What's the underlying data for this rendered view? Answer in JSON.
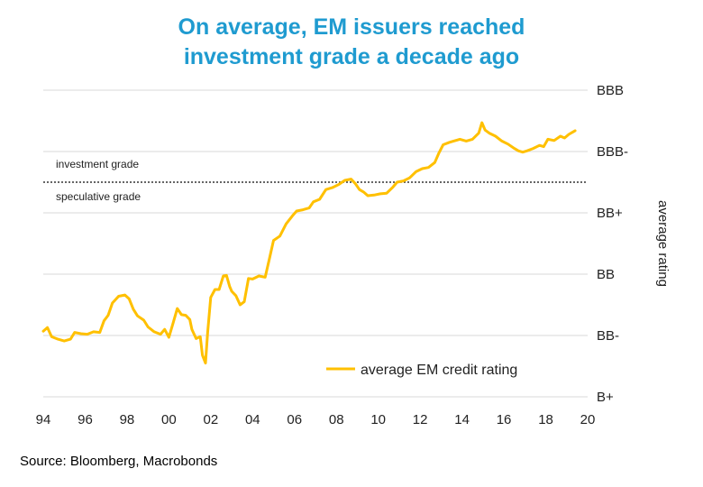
{
  "chart_data": {
    "type": "line",
    "title": [
      "On average, EM issuers reached",
      "investment grade a decade ago"
    ],
    "source": "Source: Bloomberg, Macrobonds",
    "ylabel": "average rating",
    "y_ticks": [
      "B+",
      "BB-",
      "BB",
      "BB+",
      "BBB-",
      "BBB"
    ],
    "y_range": [
      0,
      5
    ],
    "x_ticks": [
      "94",
      "96",
      "98",
      "00",
      "02",
      "04",
      "06",
      "08",
      "10",
      "12",
      "14",
      "16",
      "18",
      "20"
    ],
    "x_range": [
      1994,
      2020
    ],
    "threshold": {
      "value": 3.5,
      "upper_label": "investment grade",
      "lower_label": "speculative grade"
    },
    "legend": "average EM credit rating",
    "colors": {
      "series": "#ffc000",
      "title": "#1f9bd0",
      "grid": "#d9d9d9"
    },
    "series": [
      {
        "name": "average EM credit rating",
        "points": [
          [
            1994.0,
            1.07
          ],
          [
            1994.2,
            1.13
          ],
          [
            1994.4,
            0.98
          ],
          [
            1994.7,
            0.94
          ],
          [
            1995.0,
            0.91
          ],
          [
            1995.3,
            0.94
          ],
          [
            1995.5,
            1.05
          ],
          [
            1995.8,
            1.03
          ],
          [
            1996.1,
            1.02
          ],
          [
            1996.4,
            1.06
          ],
          [
            1996.7,
            1.05
          ],
          [
            1996.9,
            1.24
          ],
          [
            1997.1,
            1.33
          ],
          [
            1997.3,
            1.53
          ],
          [
            1997.6,
            1.64
          ],
          [
            1997.9,
            1.66
          ],
          [
            1998.1,
            1.6
          ],
          [
            1998.3,
            1.43
          ],
          [
            1998.5,
            1.32
          ],
          [
            1998.8,
            1.25
          ],
          [
            1999.0,
            1.14
          ],
          [
            1999.3,
            1.06
          ],
          [
            1999.6,
            1.02
          ],
          [
            1999.8,
            1.1
          ],
          [
            2000.0,
            0.97
          ],
          [
            2000.2,
            1.2
          ],
          [
            2000.4,
            1.44
          ],
          [
            2000.6,
            1.34
          ],
          [
            2000.8,
            1.33
          ],
          [
            2001.0,
            1.26
          ],
          [
            2001.1,
            1.1
          ],
          [
            2001.3,
            0.95
          ],
          [
            2001.5,
            0.98
          ],
          [
            2001.6,
            0.68
          ],
          [
            2001.75,
            0.55
          ],
          [
            2001.85,
            1.05
          ],
          [
            2002.0,
            1.62
          ],
          [
            2002.2,
            1.75
          ],
          [
            2002.4,
            1.75
          ],
          [
            2002.6,
            1.97
          ],
          [
            2002.75,
            1.98
          ],
          [
            2002.9,
            1.8
          ],
          [
            2003.0,
            1.72
          ],
          [
            2003.2,
            1.65
          ],
          [
            2003.4,
            1.5
          ],
          [
            2003.6,
            1.55
          ],
          [
            2003.8,
            1.93
          ],
          [
            2004.0,
            1.92
          ],
          [
            2004.3,
            1.97
          ],
          [
            2004.6,
            1.95
          ],
          [
            2004.8,
            2.25
          ],
          [
            2005.0,
            2.55
          ],
          [
            2005.3,
            2.62
          ],
          [
            2005.6,
            2.82
          ],
          [
            2005.9,
            2.95
          ],
          [
            2006.1,
            3.03
          ],
          [
            2006.4,
            3.05
          ],
          [
            2006.7,
            3.08
          ],
          [
            2006.9,
            3.18
          ],
          [
            2007.2,
            3.22
          ],
          [
            2007.5,
            3.38
          ],
          [
            2007.8,
            3.41
          ],
          [
            2008.1,
            3.46
          ],
          [
            2008.4,
            3.53
          ],
          [
            2008.7,
            3.55
          ],
          [
            2008.9,
            3.48
          ],
          [
            2009.1,
            3.38
          ],
          [
            2009.3,
            3.34
          ],
          [
            2009.5,
            3.28
          ],
          [
            2009.8,
            3.29
          ],
          [
            2010.1,
            3.31
          ],
          [
            2010.4,
            3.32
          ],
          [
            2010.7,
            3.42
          ],
          [
            2010.9,
            3.5
          ],
          [
            2011.2,
            3.52
          ],
          [
            2011.5,
            3.57
          ],
          [
            2011.8,
            3.67
          ],
          [
            2012.1,
            3.72
          ],
          [
            2012.4,
            3.74
          ],
          [
            2012.7,
            3.82
          ],
          [
            2012.9,
            3.98
          ],
          [
            2013.1,
            4.11
          ],
          [
            2013.4,
            4.15
          ],
          [
            2013.6,
            4.17
          ],
          [
            2013.9,
            4.2
          ],
          [
            2014.2,
            4.17
          ],
          [
            2014.5,
            4.2
          ],
          [
            2014.8,
            4.3
          ],
          [
            2014.95,
            4.47
          ],
          [
            2015.1,
            4.35
          ],
          [
            2015.3,
            4.3
          ],
          [
            2015.6,
            4.25
          ],
          [
            2015.9,
            4.17
          ],
          [
            2016.2,
            4.12
          ],
          [
            2016.5,
            4.05
          ],
          [
            2016.7,
            4.01
          ],
          [
            2016.9,
            3.99
          ],
          [
            2017.1,
            4.01
          ],
          [
            2017.4,
            4.05
          ],
          [
            2017.7,
            4.1
          ],
          [
            2017.9,
            4.08
          ],
          [
            2018.1,
            4.2
          ],
          [
            2018.4,
            4.18
          ],
          [
            2018.7,
            4.25
          ],
          [
            2018.9,
            4.22
          ],
          [
            2019.1,
            4.28
          ],
          [
            2019.4,
            4.34
          ]
        ]
      }
    ]
  }
}
